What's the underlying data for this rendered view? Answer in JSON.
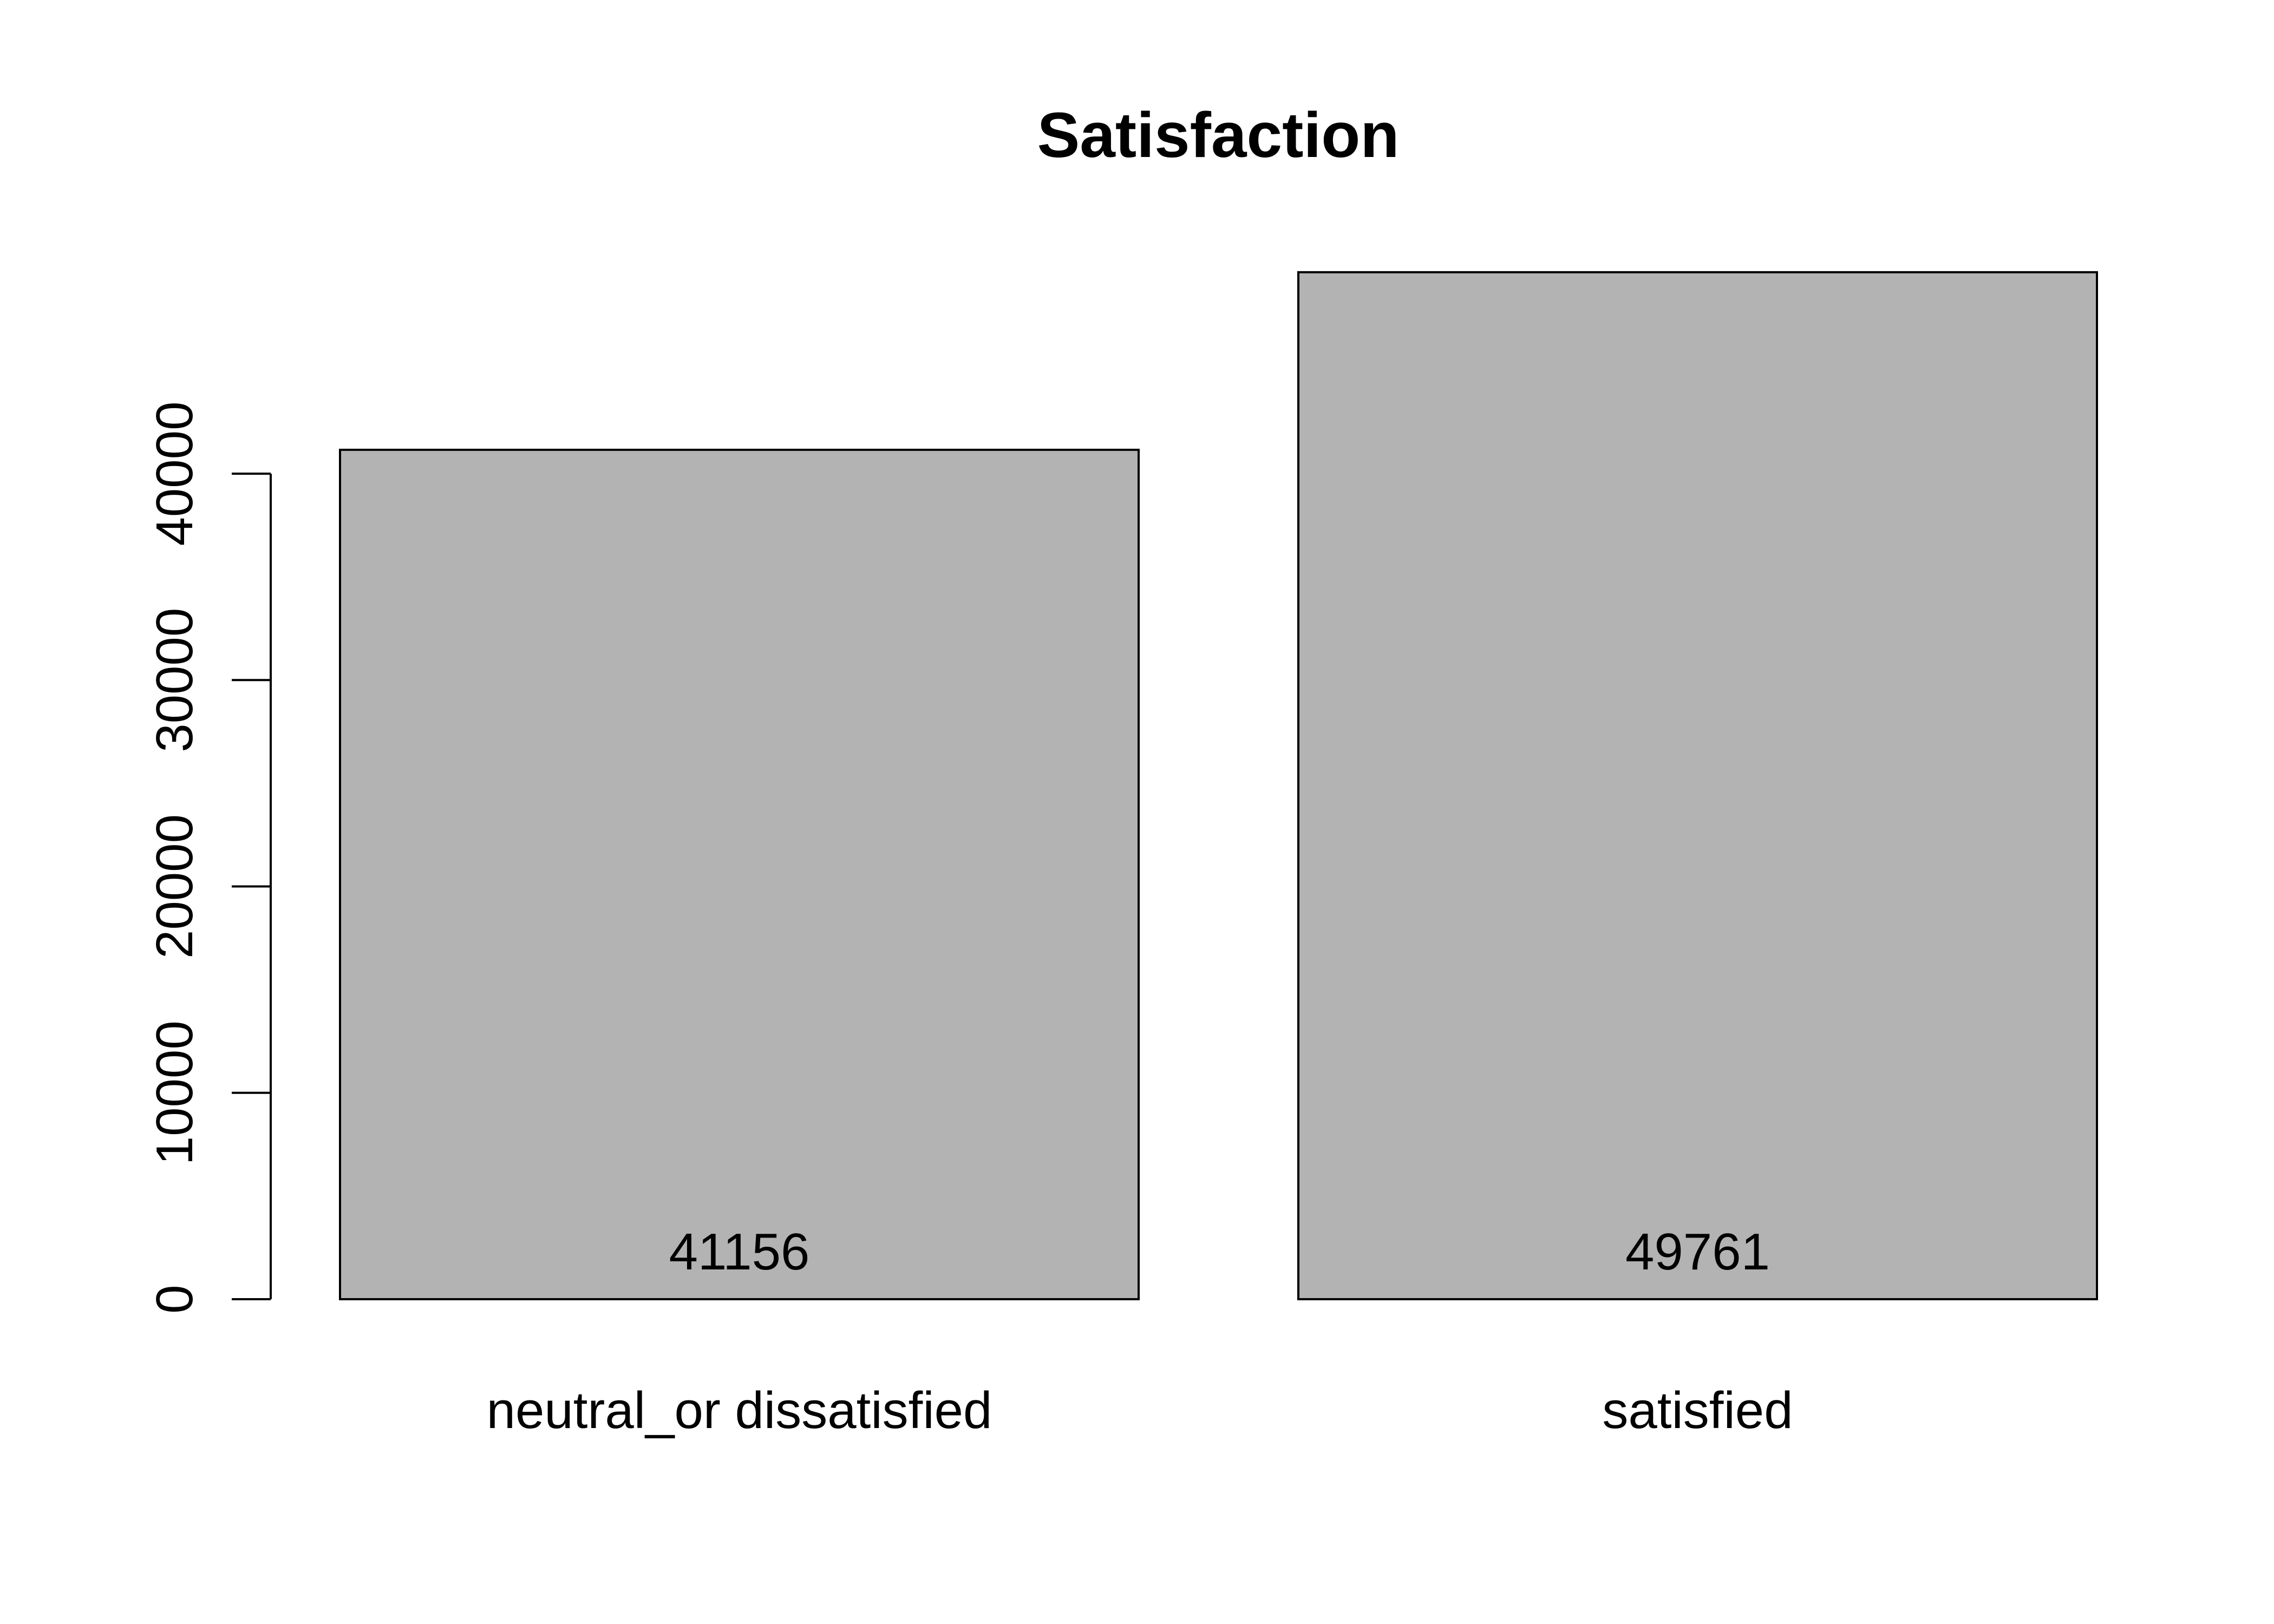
{
  "chart_data": {
    "type": "bar",
    "title": "Satisfaction",
    "xlabel": "",
    "ylabel": "",
    "categories": [
      "neutral_or dissatisfied",
      "satisfied"
    ],
    "values": [
      41156,
      49761
    ],
    "data_labels": [
      "41156",
      "49761"
    ],
    "ylim": [
      0,
      50000
    ],
    "yticks": [
      0,
      10000,
      20000,
      30000,
      40000
    ],
    "ytick_labels": [
      "0",
      "10000",
      "20000",
      "30000",
      "40000"
    ],
    "grid": false,
    "legend": "none",
    "bar_color": "#b3b3b3",
    "border_color": "#000000"
  }
}
